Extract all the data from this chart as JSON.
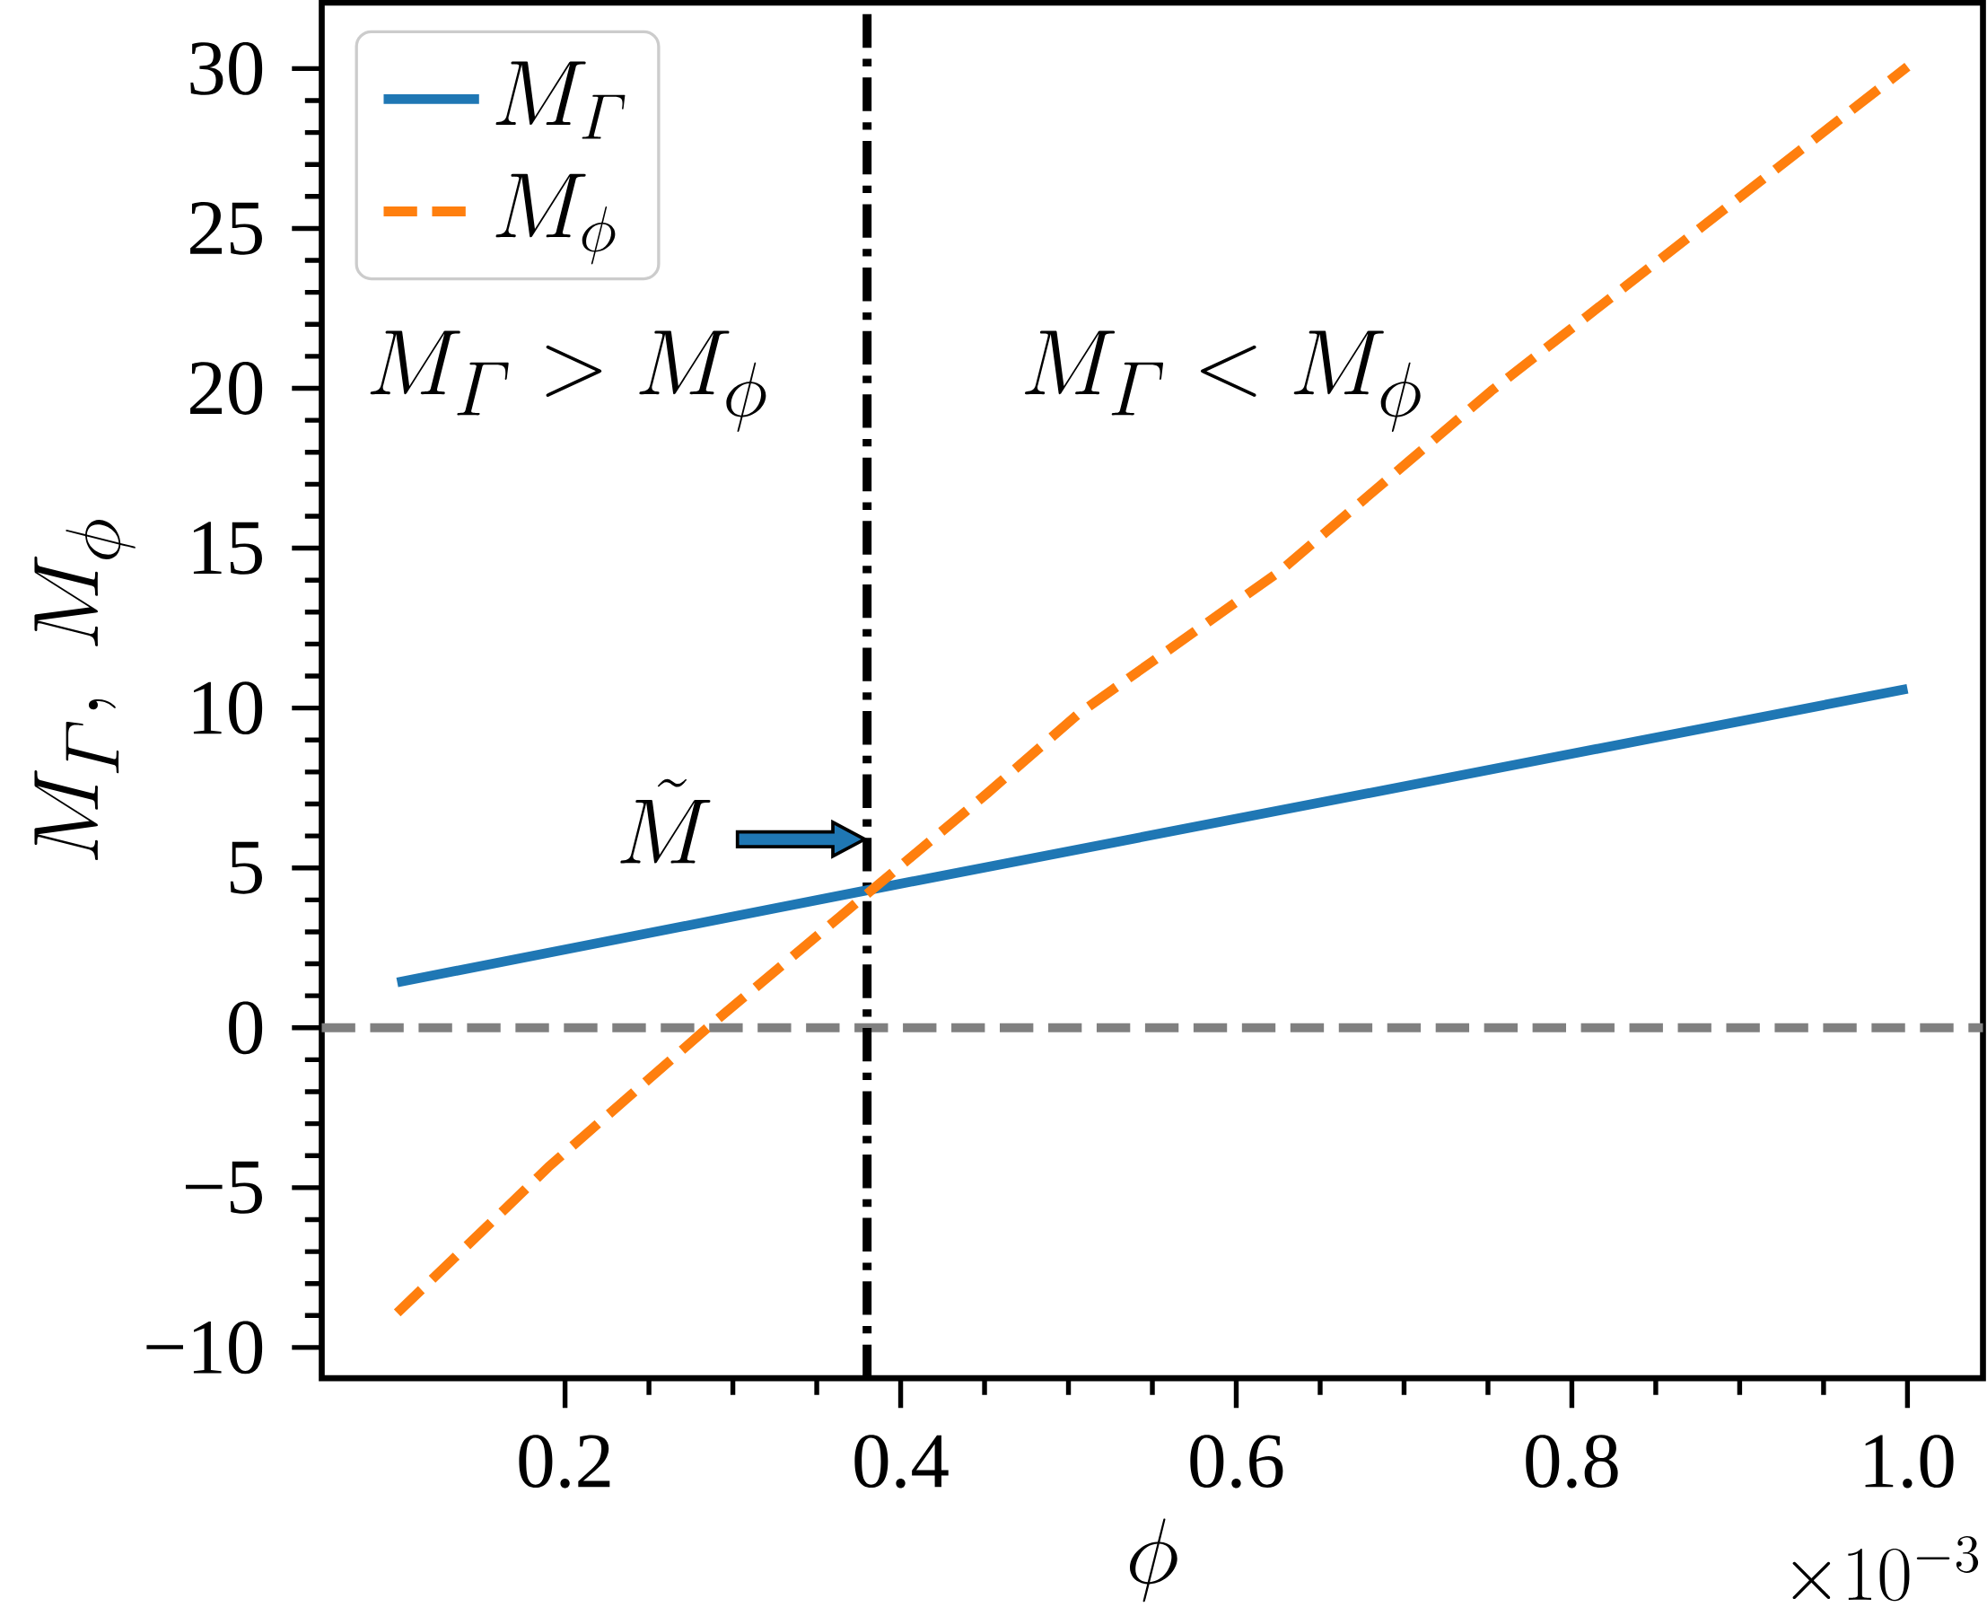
{
  "chart_data": {
    "type": "line",
    "xlabel": "\\phi",
    "ylabel": "M_{\\mathnormal{\\Gamma}},\\ M_{\\phi}",
    "series": [
      {
        "name": "M_{\\mathnormal{\\Gamma}}",
        "color": "#1f77b4",
        "line_style": "solid",
        "x": [
          0.1,
          0.38,
          1.0
        ],
        "values": [
          1.42,
          4.3,
          10.6
        ]
      },
      {
        "name": "M_{\\phi}",
        "color": "#ff7f0e",
        "line_style": "dashed",
        "x": [
          0.1,
          0.19,
          0.286,
          0.381,
          0.452,
          0.506,
          0.626,
          0.752,
          1.0
        ],
        "values": [
          -8.92,
          -4.36,
          0.05,
          4.23,
          7.35,
          9.82,
          14.28,
          19.92,
          30.06
        ]
      }
    ],
    "xlim": [
      0.055,
      1.045
    ],
    "ylim": [
      -10.96,
      32.06
    ],
    "xticks": [
      {
        "value": 0.2,
        "label": "0.2"
      },
      {
        "value": 0.4,
        "label": "0.4"
      },
      {
        "value": 0.6,
        "label": "0.6"
      },
      {
        "value": 0.8,
        "label": "0.8"
      },
      {
        "value": 1.0,
        "label": "1.0"
      }
    ],
    "yticks": [
      {
        "value": -10,
        "label": "−10"
      },
      {
        "value": -5,
        "label": "−5"
      },
      0,
      5,
      10,
      15,
      20,
      25,
      30
    ],
    "ref_lines": [
      {
        "axis": "y",
        "value": 0,
        "color": "#808080",
        "line_style": "dashed"
      },
      {
        "axis": "x",
        "value": 0.38,
        "color": "#000000",
        "line_style": "dashdot"
      }
    ],
    "annotations": [
      "\\tilde{M}",
      "M_{\\mathnormal{\\Gamma}} > M_{\\phi}",
      "M_{\\mathnormal{\\Gamma}} < M_{\\phi}",
      "\\times 10^{-3}"
    ],
    "legend": "top left",
    "grid": false
  }
}
